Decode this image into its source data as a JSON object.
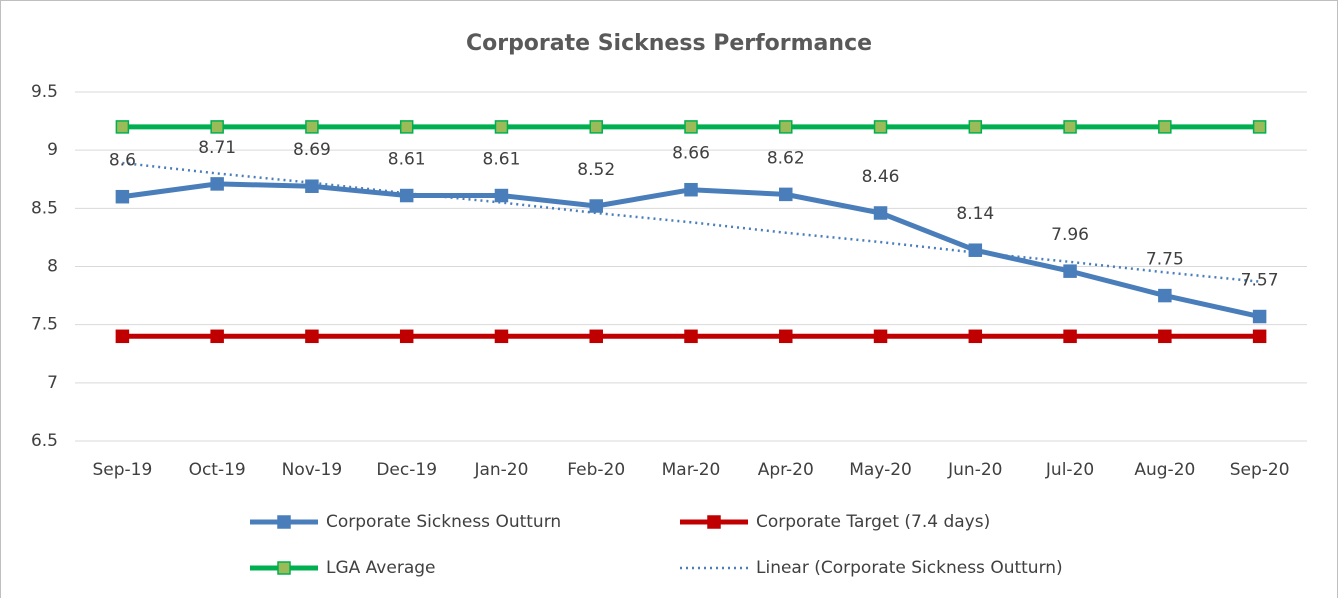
{
  "chart_data": {
    "type": "line",
    "title": "Corporate Sickness Performance",
    "categories": [
      "Sep-19",
      "Oct-19",
      "Nov-19",
      "Dec-19",
      "Jan-20",
      "Feb-20",
      "Mar-20",
      "Apr-20",
      "May-20",
      "Jun-20",
      "Jul-20",
      "Aug-20",
      "Sep-20"
    ],
    "series": [
      {
        "name": "Corporate Sickness Outturn",
        "color": "#4a7ebb",
        "line_style": "solid",
        "marker": "square",
        "data_labels": true,
        "values": [
          8.6,
          8.71,
          8.69,
          8.61,
          8.61,
          8.52,
          8.66,
          8.62,
          8.46,
          8.14,
          7.96,
          7.75,
          7.57
        ]
      },
      {
        "name": "Corporate Target (7.4 days)",
        "color": "#c00000",
        "line_style": "solid",
        "marker": "square",
        "values": [
          7.4,
          7.4,
          7.4,
          7.4,
          7.4,
          7.4,
          7.4,
          7.4,
          7.4,
          7.4,
          7.4,
          7.4,
          7.4
        ]
      },
      {
        "name": "LGA Average",
        "color": "#00b050",
        "line_style": "solid",
        "marker": "square",
        "marker_fill": "#9bbb59",
        "values": [
          9.2,
          9.2,
          9.2,
          9.2,
          9.2,
          9.2,
          9.2,
          9.2,
          9.2,
          9.2,
          9.2,
          9.2,
          9.2
        ]
      },
      {
        "name": "Linear (Corporate Sickness Outturn)",
        "color": "#4a7ebb",
        "line_style": "dotted",
        "values": [
          8.89,
          8.8,
          8.72,
          8.63,
          8.55,
          8.46,
          8.38,
          8.29,
          8.21,
          8.12,
          8.04,
          7.95,
          7.87
        ]
      }
    ],
    "ylim": [
      6.5,
      9.5
    ],
    "yticks": [
      6.5,
      7,
      7.5,
      8,
      8.5,
      9,
      9.5
    ],
    "grid": true,
    "legend": "bottom"
  }
}
